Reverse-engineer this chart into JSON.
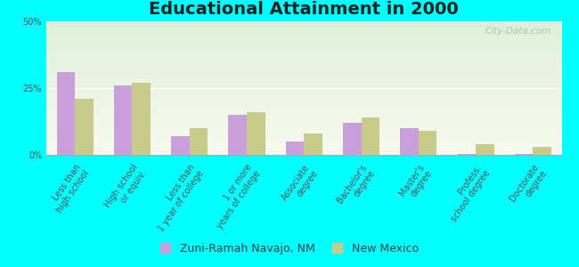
{
  "title": "Educational Attainment in 2000",
  "categories": [
    "Less than\nhigh school",
    "High school\nor equiv.",
    "Less than\n1 year of college",
    "1 or more\nyears of college",
    "Associate\ndegree",
    "Bachelor's\ndegree",
    "Master's\ndegree",
    "Profess.\nschool degree",
    "Doctorate\ndegree"
  ],
  "zuni_values": [
    31,
    26,
    7,
    15,
    5,
    12,
    10,
    0.5,
    0.5
  ],
  "nm_values": [
    21,
    27,
    10,
    16,
    8,
    14,
    9,
    4,
    3
  ],
  "zuni_color": "#c9a0dc",
  "nm_color": "#c8cc8a",
  "background_color": "#00ffff",
  "plot_bg_top": "#e0f0d8",
  "plot_bg_bottom": "#f8faf0",
  "ylim": [
    0,
    50
  ],
  "yticks": [
    0,
    25,
    50
  ],
  "ytick_labels": [
    "0%",
    "25%",
    "50%"
  ],
  "legend_label_zuni": "Zuni-Ramah Navajo, NM",
  "legend_label_nm": "New Mexico",
  "watermark": "City-Data.com",
  "title_fontsize": 14,
  "tick_fontsize": 7,
  "legend_fontsize": 9
}
